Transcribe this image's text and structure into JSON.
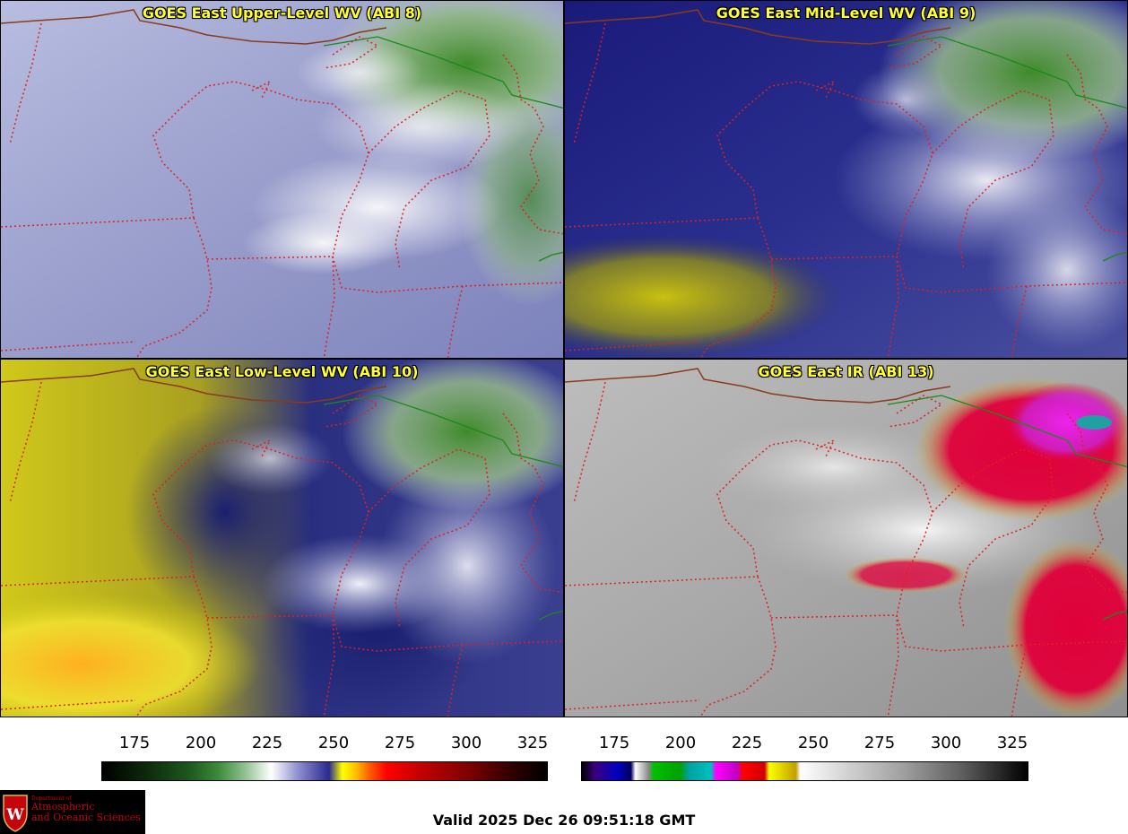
{
  "panels": {
    "upper": {
      "title": "GOES East Upper-Level WV (ABI 8)"
    },
    "mid": {
      "title": "GOES East Mid-Level WV (ABI 9)"
    },
    "low": {
      "title": "GOES East Low-Level WV (ABI 10)"
    },
    "ir": {
      "title": "GOES East IR (ABI 13)"
    }
  },
  "colorbars": {
    "wv": {
      "ticks": [
        "175",
        "200",
        "225",
        "250",
        "275",
        "300",
        "325"
      ]
    },
    "ir": {
      "ticks": [
        "175",
        "200",
        "225",
        "250",
        "275",
        "300",
        "325"
      ]
    }
  },
  "logo": {
    "line1": "Department of",
    "line2": "Atmospheric",
    "line3": "and Oceanic Sciences",
    "shield_letter": "W"
  },
  "valid_time": "Valid 2025 Dec 26 09:51:18 GMT",
  "colors": {
    "title_text": "#ffff33",
    "state_border": "#e02020",
    "country_border": "#8b3a1a",
    "coast": "#1a8a1a",
    "logo_red": "#c5050c"
  }
}
